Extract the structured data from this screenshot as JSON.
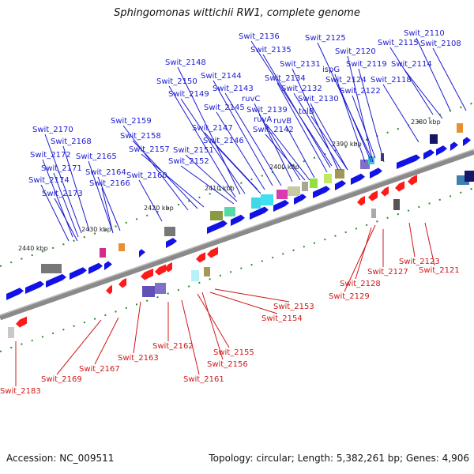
{
  "title": "Sphingomonas wittichii RW1, complete genome",
  "footer": {
    "accession": "Accession: NC_009511",
    "stats": "Topology: circular; Length: 5,382,261 bp; Genes: 4,906"
  },
  "scale_labels": [
    "2380 kbp",
    "2390 kbp",
    "2400 kbp",
    "2410 kbp",
    "2420 kbp",
    "2430 kbp",
    "2440 kbp"
  ],
  "top_genes": [
    "Swit_2110",
    "Swit_2108",
    "Swit_2115",
    "Swit_2114",
    "Swit_2125",
    "Swit_2136",
    "Swit_2135",
    "Swit_2120",
    "Swit_2119",
    "Swit_2131",
    "ispG",
    "Swit_2148",
    "Swit_2144",
    "Swit_2134",
    "Swit_2124",
    "Swit_2118",
    "Swit_2150",
    "Swit_2143",
    "Swit_2132",
    "Swit_2122",
    "Swit_2149",
    "ruvC",
    "Swit_2130",
    "Swit_2145",
    "Swit_2139",
    "ruvB",
    "tolB",
    "ruvA",
    "Swit_2159",
    "Swit_2147",
    "Swit_2142",
    "Swit_2170",
    "Swit_2158",
    "Swit_2146",
    "Swit_2168",
    "Swit_2157",
    "Swit_2151",
    "Swit_2172",
    "Swit_2165",
    "Swit_2152",
    "Swit_2171",
    "Swit_2164",
    "Swit_2160",
    "Swit_2174",
    "Swit_2166",
    "Swit_2173"
  ],
  "bottom_genes": [
    "Swit_2123",
    "Swit_2127",
    "Swit_2121",
    "Swit_2128",
    "Swit_2129",
    "Swit_2153",
    "Swit_2154",
    "Swit_2155",
    "Swit_2156",
    "Swit_2162",
    "Swit_2163",
    "Swit_2161",
    "Swit_2167",
    "Swit_2169",
    "Swit_2183"
  ]
}
